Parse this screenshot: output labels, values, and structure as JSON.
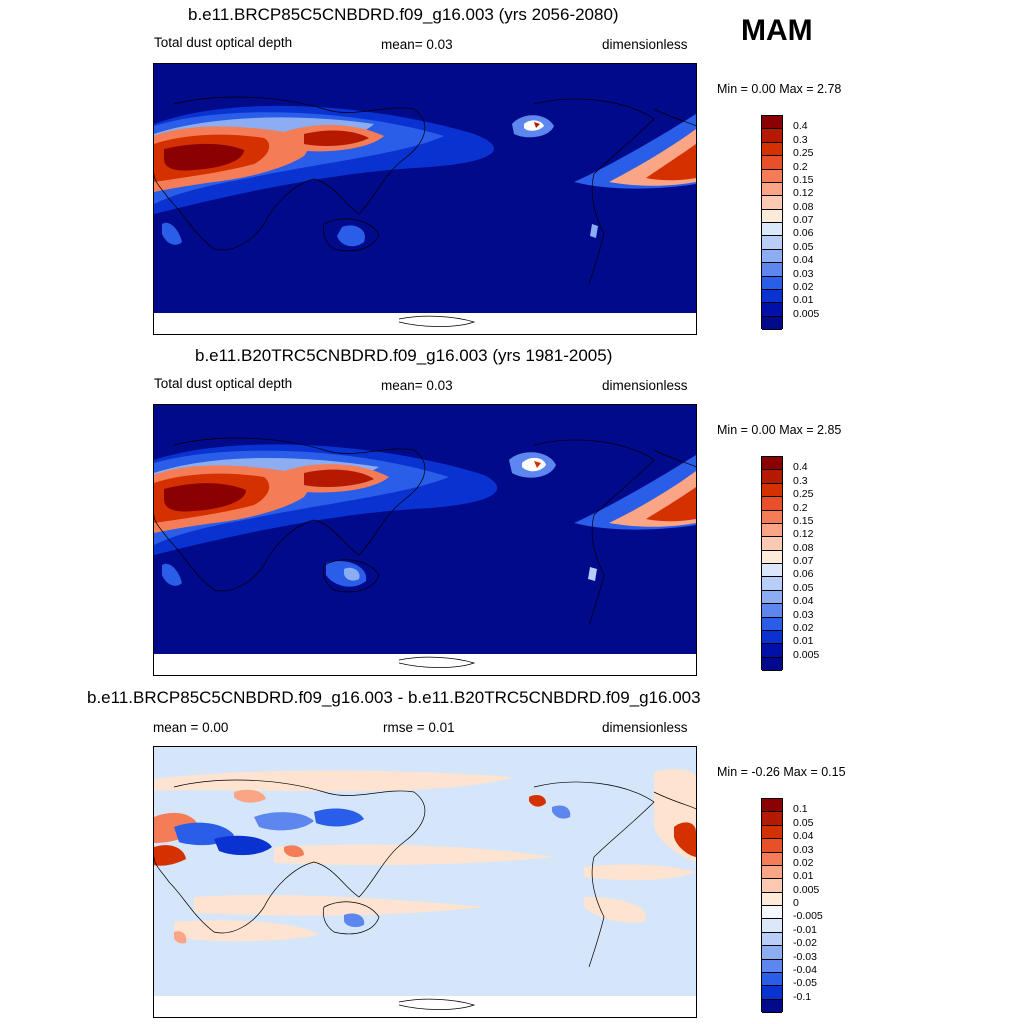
{
  "season": "MAM",
  "panels": [
    {
      "title": "b.e11.BRCP85C5CNBDRD.f09_g16.003 (yrs 2056-2080)",
      "left_label": "Total dust optical depth",
      "center_label": "mean=   0.03",
      "right_label": "dimensionless",
      "minmax": "Min =   0.00 Max =   2.78",
      "colorbar": {
        "labels": [
          "0.4",
          "0.3",
          "0.25",
          "0.2",
          "0.15",
          "0.12",
          "0.08",
          "0.07",
          "0.06",
          "0.05",
          "0.04",
          "0.03",
          "0.02",
          "0.01",
          "0.005"
        ],
        "colors": [
          "#8b0000",
          "#b51a00",
          "#d53000",
          "#e8502a",
          "#f47c56",
          "#f9a586",
          "#fccab2",
          "#fdebd9",
          "#dbe7fb",
          "#b8cdf7",
          "#8dadf3",
          "#5d87ee",
          "#2a5de8",
          "#0a32d0",
          "#0010a8",
          "#000a8b"
        ]
      }
    },
    {
      "title": "b.e11.B20TRC5CNBDRD.f09_g16.003 (yrs 1981-2005)",
      "left_label": "Total dust optical depth",
      "center_label": "mean=   0.03",
      "right_label": "dimensionless",
      "minmax": "Min =   0.00 Max =   2.85",
      "colorbar": {
        "labels": [
          "0.4",
          "0.3",
          "0.25",
          "0.2",
          "0.15",
          "0.12",
          "0.08",
          "0.07",
          "0.06",
          "0.05",
          "0.04",
          "0.03",
          "0.02",
          "0.01",
          "0.005"
        ],
        "colors": [
          "#8b0000",
          "#b51a00",
          "#d53000",
          "#e8502a",
          "#f47c56",
          "#f9a586",
          "#fccab2",
          "#fdebd9",
          "#dbe7fb",
          "#b8cdf7",
          "#8dadf3",
          "#5d87ee",
          "#2a5de8",
          "#0a32d0",
          "#0010a8",
          "#000a8b"
        ]
      }
    },
    {
      "title": "b.e11.BRCP85C5CNBDRD.f09_g16.003 - b.e11.B20TRC5CNBDRD.f09_g16.003",
      "left_label": "mean =   0.00",
      "center_label": "rmse =   0.01",
      "right_label": "dimensionless",
      "minmax": "Min =  -0.26 Max =   0.15",
      "colorbar": {
        "labels": [
          "0.1",
          "0.05",
          "0.04",
          "0.03",
          "0.02",
          "0.01",
          "0.005",
          "0",
          "-0.005",
          "-0.01",
          "-0.02",
          "-0.03",
          "-0.04",
          "-0.05",
          "-0.1"
        ],
        "colors": [
          "#8b0000",
          "#b51a00",
          "#d53000",
          "#e8502a",
          "#f47c56",
          "#f9a586",
          "#fccab2",
          "#fdebd9",
          "#f4f8fe",
          "#dbe7fb",
          "#b8cdf7",
          "#8dadf3",
          "#5d87ee",
          "#2a5de8",
          "#0a32d0",
          "#000a8b"
        ]
      }
    }
  ],
  "map_colors": {
    "ocean_low": "#000a8b",
    "diff_background": "#d6e6fa",
    "diff_positive": "#fde3d0",
    "missing": "#ffffff"
  }
}
